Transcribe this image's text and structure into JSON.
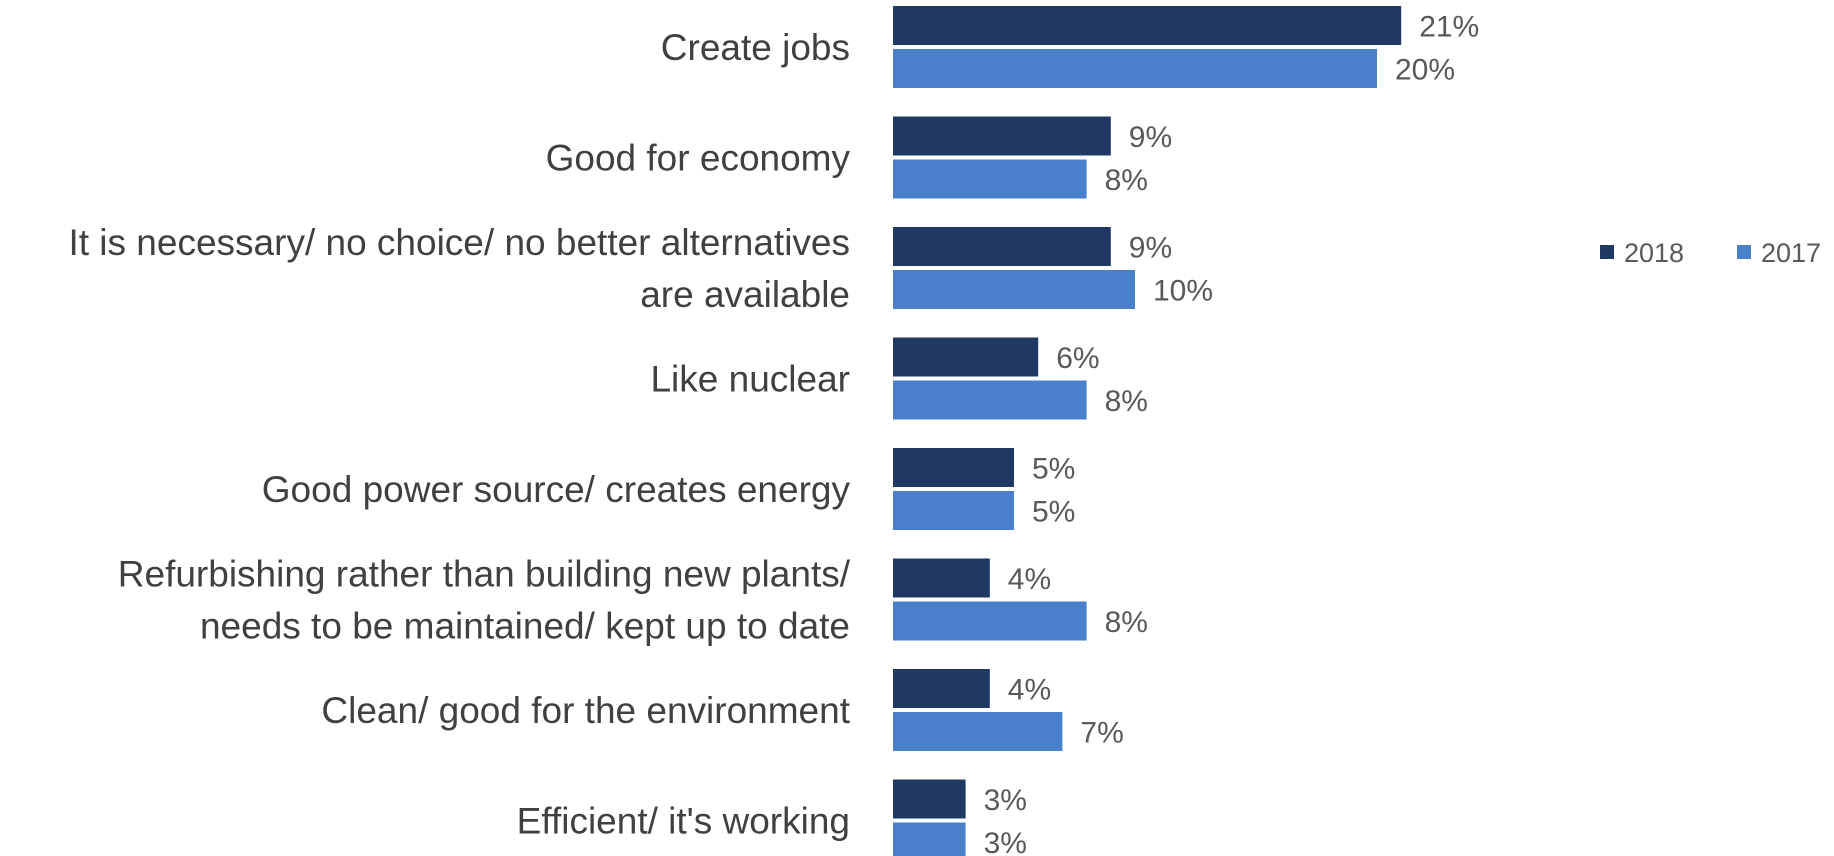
{
  "chart_data": {
    "type": "bar",
    "orientation": "horizontal",
    "categories": [
      [
        "Create jobs"
      ],
      [
        "Good for economy"
      ],
      [
        "It is necessary/ no choice/ no better alternatives",
        "are available"
      ],
      [
        "Like nuclear"
      ],
      [
        "Good power source/ creates energy"
      ],
      [
        "Refurbishing rather than building new plants/",
        "needs to be maintained/ kept up to date"
      ],
      [
        "Clean/ good for the environment"
      ],
      [
        "Efficient/ it's working"
      ]
    ],
    "series": [
      {
        "name": "2018",
        "color": "#1f3864",
        "values": [
          21,
          9,
          9,
          6,
          5,
          4,
          4,
          3
        ],
        "labels": [
          "21%",
          "9%",
          "9%",
          "6%",
          "5%",
          "4%",
          "4%",
          "3%"
        ]
      },
      {
        "name": "2017",
        "color": "#4a7fcb",
        "values": [
          20,
          8,
          10,
          8,
          5,
          8,
          7,
          3
        ],
        "labels": [
          "20%",
          "8%",
          "10%",
          "8%",
          "5%",
          "8%",
          "7%",
          "3%"
        ]
      }
    ],
    "unit": "%",
    "xlim": [
      0,
      25
    ],
    "grid": false,
    "legend": "right"
  }
}
